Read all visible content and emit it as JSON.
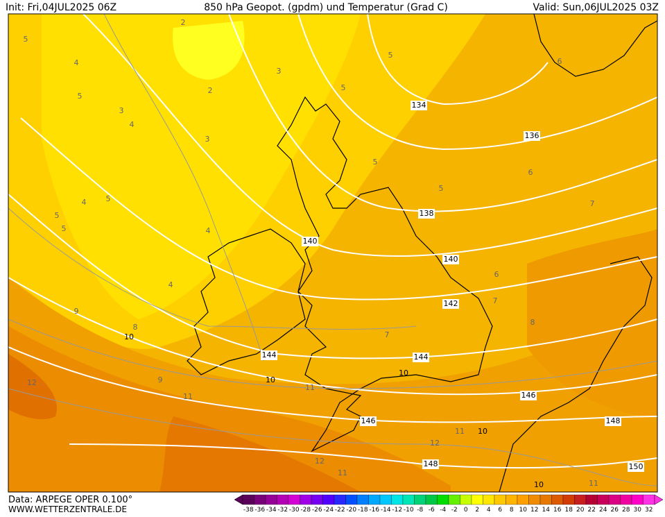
{
  "header": {
    "init": "Init: Fri,04JUL2025 06Z",
    "title": "850 hPa Geopot. (gpdm) und Temperatur (Grad C)",
    "valid": "Valid: Sun,06JUL2025 03Z"
  },
  "footer": {
    "source": "Data: ARPEGE OPER 0.100°",
    "site": "WWW.WETTERZENTRALE.DE"
  },
  "geopotential_labels": [
    134,
    136,
    138,
    140,
    140,
    142,
    144,
    144,
    146,
    146,
    148,
    148,
    150
  ],
  "isotherm_labels": [
    10,
    10,
    10,
    10,
    10,
    5,
    5,
    5,
    5,
    5,
    5,
    5,
    5,
    5,
    2,
    2,
    3,
    3,
    3,
    4,
    4,
    4,
    4,
    4,
    6,
    6,
    6,
    7,
    7,
    7,
    8,
    8,
    9,
    9,
    11,
    11,
    11,
    11,
    11,
    12,
    12,
    12
  ],
  "colorbar": {
    "ticks": [
      -38,
      -36,
      -34,
      -32,
      -30,
      -28,
      -26,
      -24,
      -22,
      -20,
      -18,
      -16,
      -14,
      -12,
      -10,
      -8,
      -6,
      -4,
      -2,
      0,
      2,
      4,
      6,
      8,
      10,
      12,
      14,
      16,
      18,
      20,
      22,
      24,
      26,
      28,
      30,
      32
    ],
    "colors": [
      "#5a005a",
      "#780078",
      "#960096",
      "#b400b4",
      "#d200d2",
      "#a000e6",
      "#7800f0",
      "#5000ff",
      "#2828ff",
      "#0050ff",
      "#0080ff",
      "#00a8ff",
      "#00c8ff",
      "#00e6e6",
      "#00e6b4",
      "#00d278",
      "#00c846",
      "#00dc00",
      "#64f000",
      "#c8ff00",
      "#ffff00",
      "#ffe600",
      "#ffc800",
      "#ffb400",
      "#ffa000",
      "#f08c00",
      "#e67800",
      "#dc5a00",
      "#d23c00",
      "#c81e1e",
      "#b40032",
      "#c8005a",
      "#dc0082",
      "#f000a0",
      "#ff00c8",
      "#ff32e6"
    ]
  }
}
